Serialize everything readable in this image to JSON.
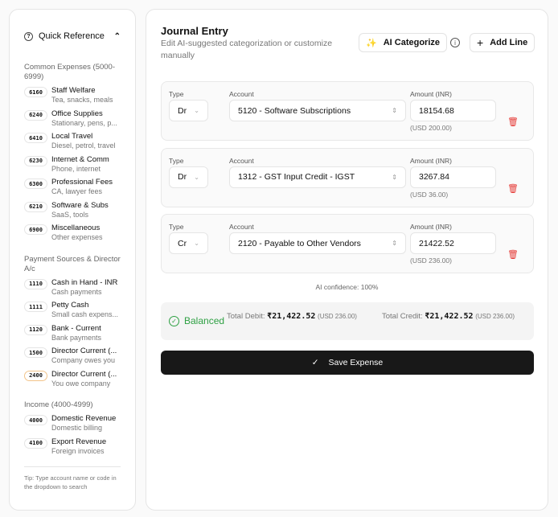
{
  "sidebar": {
    "title": "Quick Reference",
    "sections": [
      {
        "heading": "Common Expenses (5000-6999)",
        "items": [
          {
            "code": "6160",
            "name": "Staff Welfare",
            "desc": "Tea, snacks, meals"
          },
          {
            "code": "6240",
            "name": "Office Supplies",
            "desc": "Stationary, pens, p..."
          },
          {
            "code": "6410",
            "name": "Local Travel",
            "desc": "Diesel, petrol, travel"
          },
          {
            "code": "6230",
            "name": "Internet & Comm",
            "desc": "Phone, internet"
          },
          {
            "code": "6300",
            "name": "Professional Fees",
            "desc": "CA, lawyer fees"
          },
          {
            "code": "6210",
            "name": "Software & Subs",
            "desc": "SaaS, tools"
          },
          {
            "code": "6900",
            "name": "Miscellaneous",
            "desc": "Other expenses"
          }
        ]
      },
      {
        "heading": "Payment Sources & Director A/c",
        "items": [
          {
            "code": "1110",
            "name": "Cash in Hand - INR",
            "desc": "Cash payments"
          },
          {
            "code": "1111",
            "name": "Petty Cash",
            "desc": "Small cash expens..."
          },
          {
            "code": "1120",
            "name": "Bank - Current",
            "desc": "Bank payments"
          },
          {
            "code": "1500",
            "name": "Director Current (...",
            "desc": "Company owes you"
          },
          {
            "code": "2400",
            "name": "Director Current (...",
            "desc": "You owe company",
            "highlight": true
          }
        ]
      },
      {
        "heading": "Income (4000-4999)",
        "items": [
          {
            "code": "4000",
            "name": "Domestic Revenue",
            "desc": "Domestic billing"
          },
          {
            "code": "4100",
            "name": "Export Revenue",
            "desc": "Foreign invoices"
          }
        ]
      }
    ],
    "tip": "Tip: Type account name or code in the dropdown to search"
  },
  "main": {
    "title": "Journal Entry",
    "subtitle": "Edit AI-suggested categorization or customize manually",
    "ai_button": "AI Categorize",
    "add_button": "Add Line",
    "labels": {
      "type": "Type",
      "account": "Account",
      "amount": "Amount (INR)"
    },
    "lines": [
      {
        "type": "Dr",
        "account": "5120 - Software Subscriptions",
        "amount": "18154.68",
        "usd": "(USD 200.00)"
      },
      {
        "type": "Dr",
        "account": "1312 - GST Input Credit - IGST",
        "amount": "3267.84",
        "usd": "(USD 36.00)"
      },
      {
        "type": "Cr",
        "account": "2120 - Payable to Other Vendors",
        "amount": "21422.52",
        "usd": "(USD 236.00)"
      }
    ],
    "confidence": "AI confidence: 100%",
    "status": "Balanced",
    "status_color": "#2ea043",
    "debit_label": "Total Debit:",
    "debit": "₹21,422.52",
    "debit_usd": "(USD 236.00)",
    "credit_label": "Total Credit:",
    "credit": "₹21,422.52",
    "credit_usd": "(USD 236.00)",
    "save": "Save Expense"
  }
}
